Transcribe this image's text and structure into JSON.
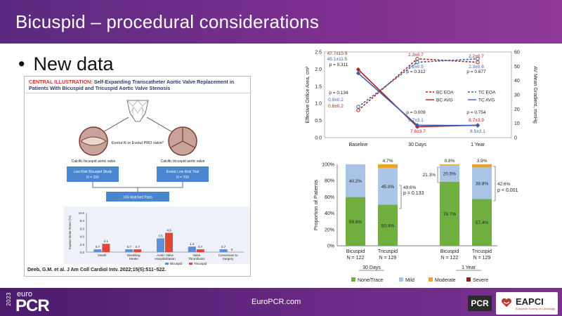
{
  "slide": {
    "title": "Bicuspid – procedural considerations",
    "bullet": "New data"
  },
  "illustration": {
    "title_prefix": "CENTRAL ILLUSTRATION:",
    "title_rest": "Self-Expanding Transcatheter Aortic Valve Replacement in Patients With Bicuspid and Tricuspid Aortic Valve Stenosis",
    "valve_label": "Evolut R or Evolut PRO valve*",
    "left_valve_label": "Calcific bicuspid aortic valve",
    "right_valve_label": "Calcific tricuspid aortic valve",
    "left_study": "Low Risk Bicuspid Study",
    "left_n": "N = 150",
    "right_study": "Evolut Low Risk Trial",
    "right_n": "N = 700",
    "matched": "145 Matched Pairs",
    "citation": "Deeb, G.M. et al. J Am Coll Cardiol Intv. 2022;15(5):511–522.",
    "icons": [
      "valve-stent-icon",
      "bicuspid-valve-icon",
      "tricuspid-valve-icon"
    ]
  },
  "chart_data": [
    {
      "type": "bar",
      "ylabel": "Kaplan-Meier Rates (%)",
      "ylim": [
        0,
        10
      ],
      "yticks": [
        "10.0",
        "8.0",
        "6.0",
        "4.0",
        "2.0",
        "0.0"
      ],
      "categories": [
        "Death",
        "Disabling Stroke",
        "Aortic Valve Hospitalization",
        "Valve Thrombosis",
        "Conversion to Surgery"
      ],
      "category_lines": [
        [
          "Death"
        ],
        [
          "Disabling",
          "Stroke"
        ],
        [
          "Aortic Valve",
          "Hospitalization"
        ],
        [
          "Valve",
          "Thrombosis"
        ],
        [
          "Conversion to",
          "Surgery"
        ]
      ],
      "series": [
        {
          "name": "Bicuspid",
          "values": [
            0.7,
            0.7,
            3.5,
            1.4,
            0.7
          ],
          "labels": [
            "0.7",
            "0.7",
            "3.5",
            "1.4",
            "0.7"
          ],
          "color": "#5b8fd6"
        },
        {
          "name": "Tricuspid",
          "values": [
            2.1,
            0.7,
            4.9,
            0.7,
            0
          ],
          "labels": [
            "2.1",
            "0.7",
            "4.9",
            "0.7",
            "0"
          ],
          "color": "#e0463a"
        }
      ]
    },
    {
      "type": "line",
      "categories": [
        "Baseline",
        "30 Days",
        "1 Year"
      ],
      "ylabel": "Effective Orifice Area, cm²",
      "ylabel_right": "AV Mean Gradient, mmHg",
      "ylim": [
        0,
        2.5
      ],
      "ylim_right": [
        0,
        60
      ],
      "yticks": [
        "0.0",
        "0.5",
        "1.0",
        "1.5",
        "2.0",
        "2.5"
      ],
      "yticks_right": [
        "0",
        "10",
        "20",
        "30",
        "40",
        "50",
        "60"
      ],
      "series": [
        {
          "name": "BC EOA",
          "axis": "left",
          "values": [
            0.8,
            2.3,
            2.2
          ],
          "color": "#b01e1e",
          "dash": true
        },
        {
          "name": "TC EOA",
          "axis": "left",
          "values": [
            0.9,
            2.2,
            2.3
          ],
          "color": "#3a5fa8",
          "dash": true
        },
        {
          "name": "BC AVG",
          "axis": "right",
          "values": [
            47.7,
            7.6,
            8.7
          ],
          "color": "#b01e1e",
          "dash": false
        },
        {
          "name": "TC AVG",
          "axis": "right",
          "values": [
            45.1,
            8.7,
            8.5
          ],
          "color": "#3a5fa8",
          "dash": false
        }
      ],
      "labels": {
        "bl_avg_bc": "47.7±15.9",
        "bl_avg_tc": "45.1±11.5",
        "bl_avg_p": "p = 0.311",
        "bl_eoa_p": "p = 0.134",
        "bl_eoa_tc": "0.9±0.2",
        "bl_eoa_bc": "0.8±0.2",
        "d30_eoa_bc": "2.3±0.7",
        "d30_eoa_tc": "2.2±0.5",
        "d30_eoa_p": "p = 0.312",
        "d30_avg_p": "p = 0.009",
        "d30_avg_tc": "8.7±3.1",
        "d30_avg_bc": "7.6±3.7",
        "y1_eoa_bc": "2.2±0.7",
        "y1_eoa_tc": "2.3±0.6",
        "y1_eoa_p": "p = 0.677",
        "y1_avg_p": "p = 0.754",
        "y1_avg_bc": "8.7±3.9",
        "y1_avg_tc": "8.5±3.1"
      },
      "legend": [
        "BC EOA",
        "TC EOA",
        "BC AVG",
        "TC AVG"
      ]
    },
    {
      "type": "bar",
      "stacked": true,
      "ylabel": "Proportion of Patients",
      "ylim": [
        0,
        100
      ],
      "yticks": [
        "100%",
        "80%",
        "60%",
        "40%",
        "20%",
        "0%"
      ],
      "groups": [
        {
          "name": "Bicuspid",
          "n": "N = 122",
          "period": "30 Days",
          "values": {
            "None/Trace": 59.8,
            "Mild": 40.2,
            "Moderate": 0,
            "Severe": 0
          },
          "labels": {
            "None/Trace": "59.8%",
            "Mild": "40.2%"
          }
        },
        {
          "name": "Tricuspid",
          "n": "N = 129",
          "period": "30 Days",
          "values": {
            "None/Trace": 50.4,
            "Mild": 45.0,
            "Moderate": 4.7,
            "Severe": 0
          },
          "labels": {
            "None/Trace": "50.4%",
            "Mild": "45.0%",
            "Moderate": "4.7%"
          }
        },
        {
          "name": "Bicuspid",
          "n": "N = 122",
          "period": "1 Year",
          "values": {
            "None/Trace": 78.7,
            "Mild": 20.5,
            "Moderate": 0.8,
            "Severe": 0
          },
          "labels": {
            "None/Trace": "78.7%",
            "Mild": "20.5%",
            "Moderate": "0.8%"
          }
        },
        {
          "name": "Tricuspid",
          "n": "N = 129",
          "period": "1 Year",
          "values": {
            "None/Trace": 57.4,
            "Mild": 38.8,
            "Moderate": 3.9,
            "Severe": 0
          },
          "labels": {
            "None/Trace": "57.4%",
            "Mild": "38.8%",
            "Moderate": "3.9%"
          }
        }
      ],
      "annotations": {
        "d30_combined": "49.6%",
        "d30_p": "p = 0.133",
        "y1_left": "21.3%",
        "y1_combined": "42.6%",
        "y1_p": "p < 0.001"
      },
      "periods": [
        "30 Days",
        "1 Year"
      ],
      "legend": [
        {
          "name": "None/Trace",
          "color": "#6fae3f"
        },
        {
          "name": "Mild",
          "color": "#a9c4e6"
        },
        {
          "name": "Moderate",
          "color": "#e5a62a"
        },
        {
          "name": "Severe",
          "color": "#8b1d1d"
        }
      ]
    }
  ],
  "footer": {
    "year": "2023",
    "logo_euro": "euro",
    "logo_pcr": "PCR",
    "url": "EuroPCR.com",
    "pcr_badge": "PCR",
    "eapci": "EAPCI",
    "eapci_sub": "European Society of Cardiology"
  }
}
